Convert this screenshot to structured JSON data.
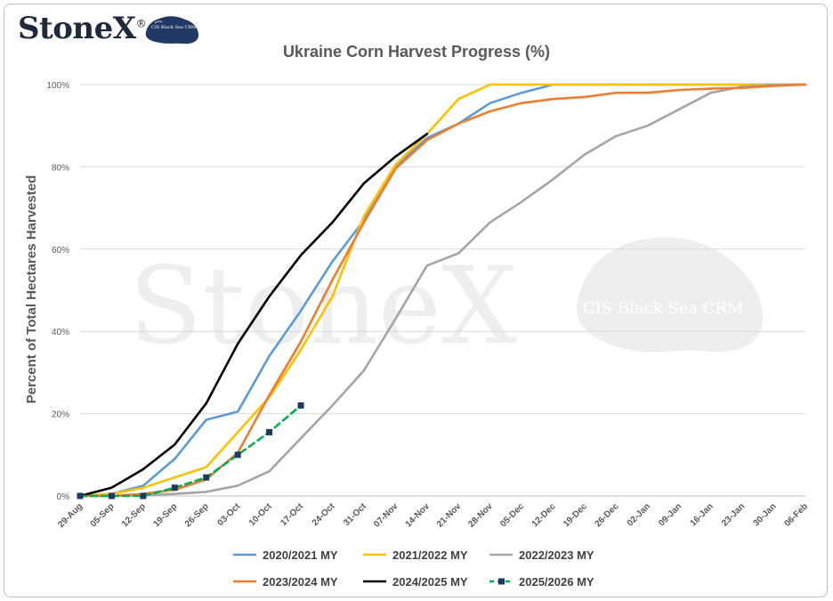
{
  "brand": {
    "name": "StoneX",
    "reg_mark": "®",
    "map_label": "CIS Black Sea CRM"
  },
  "watermark": {
    "name": "StoneX",
    "map_label": "CIS Black Sea CRM"
  },
  "chart_data": {
    "type": "line",
    "title": "Ukraine Corn Harvest Progress (%)",
    "xlabel": "",
    "ylabel": "Percent of Total Hectares Harvested",
    "ylim": [
      0,
      100
    ],
    "yticks": [
      "0%",
      "20%",
      "40%",
      "60%",
      "80%",
      "100%"
    ],
    "grid": true,
    "legend_position": "bottom",
    "categories": [
      "29-Aug",
      "05-Sep",
      "12-Sep",
      "19-Sep",
      "26-Sep",
      "03-Oct",
      "10-Oct",
      "17-Oct",
      "24-Oct",
      "31-Oct",
      "07-Nov",
      "14-Nov",
      "21-Nov",
      "28-Nov",
      "05-Dec",
      "12-Dec",
      "19-Dec",
      "26-Dec",
      "02-Jan",
      "09-Jan",
      "16-Jan",
      "23-Jan",
      "30-Jan",
      "06-Feb"
    ],
    "series": [
      {
        "name": "2020/2021 MY",
        "color": "#5b9bd5",
        "dashed": false,
        "markers": false,
        "values": [
          0,
          0.5,
          2.5,
          9,
          18.5,
          20.5,
          34,
          45,
          57,
          67,
          80,
          87,
          90.5,
          95.5,
          98,
          100,
          100,
          100,
          100,
          100,
          100,
          100,
          100,
          100
        ]
      },
      {
        "name": "2021/2022 MY",
        "color": "#ffc000",
        "dashed": false,
        "markers": false,
        "values": [
          0,
          0.5,
          2,
          4.5,
          7,
          15.5,
          24,
          35.5,
          48.5,
          68,
          80.5,
          88,
          96.5,
          100,
          100,
          100,
          100,
          100,
          100,
          100,
          100,
          100,
          100,
          100
        ]
      },
      {
        "name": "2022/2023 MY",
        "color": "#a5a5a5",
        "dashed": false,
        "markers": false,
        "values": [
          0,
          0,
          0.2,
          0.5,
          1,
          2.5,
          6,
          14,
          22,
          30.5,
          43,
          56,
          59,
          66.5,
          71.5,
          77,
          83,
          87.5,
          90,
          94,
          98,
          99.5,
          100,
          100
        ]
      },
      {
        "name": "2023/2024 MY",
        "color": "#ed7d31",
        "dashed": false,
        "markers": false,
        "values": [
          0,
          0,
          0.5,
          1.5,
          4,
          10.5,
          24.5,
          37.5,
          52.5,
          66.5,
          79.5,
          86.5,
          90.5,
          93.5,
          95.5,
          96.5,
          97,
          98,
          98,
          98.7,
          99,
          99.2,
          99.7,
          100
        ]
      },
      {
        "name": "2024/2025 MY",
        "color": "#000000",
        "dashed": false,
        "markers": false,
        "values": [
          0,
          2,
          6.5,
          12.5,
          22.5,
          37,
          48.5,
          58.5,
          66.5,
          76,
          82.5,
          88,
          null,
          null,
          null,
          null,
          null,
          null,
          null,
          null,
          null,
          null,
          null,
          null
        ]
      },
      {
        "name": "2025/2026 MY",
        "color": "#00b050",
        "marker_color": "#1f3864",
        "dashed": true,
        "markers": true,
        "values": [
          0,
          0,
          0,
          2,
          4.5,
          10,
          15.5,
          22,
          null,
          null,
          null,
          null,
          null,
          null,
          null,
          null,
          null,
          null,
          null,
          null,
          null,
          null,
          null,
          null
        ]
      }
    ]
  }
}
